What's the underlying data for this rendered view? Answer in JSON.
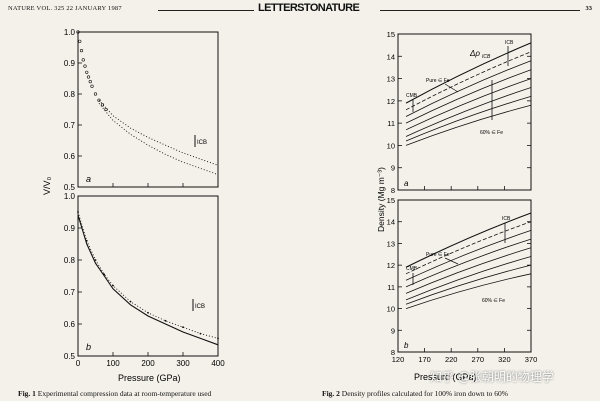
{
  "header": {
    "journal_line": "NATURE VOL. 325 22 JANUARY 1987",
    "section_title": "LETTERSTONATURE",
    "page_number": "33"
  },
  "watermark": "知乎 @张朝明的物理学",
  "fig1": {
    "caption_label": "Fig. 1",
    "caption_text": "Experimental compression data at room-temperature used",
    "ylabel": "V/V₀",
    "xlabel": "Pressure (GPa)",
    "panel_a": {
      "tag": "a",
      "annotation": "ICB",
      "y_ticks": [
        "1.0",
        "0.9",
        "0.8",
        "0.7",
        "0.6",
        "0.5"
      ]
    },
    "panel_b": {
      "tag": "b",
      "annotation": "ICB",
      "y_ticks": [
        "1.0",
        "0.9",
        "0.8",
        "0.7",
        "0.6",
        "0.5"
      ],
      "x_ticks": [
        "0",
        "100",
        "200",
        "300",
        "400"
      ]
    }
  },
  "fig2": {
    "caption_label": "Fig. 2",
    "caption_text": "Density profiles calculated for 100% iron down to 60%",
    "ylabel": "Density (Mg m⁻³)",
    "xlabel": "Pressure (GPa)",
    "panel_a": {
      "tag": "a",
      "y_ticks": [
        "15",
        "14",
        "13",
        "12",
        "11",
        "10",
        "9",
        "8"
      ],
      "labels": {
        "icb": "ICB",
        "delta": "Δρ",
        "delta_sub": "ICB",
        "pure": "Pure ∈ Fe",
        "cmb": "CMB",
        "sixty": "60% ∈ Fe"
      }
    },
    "panel_b": {
      "tag": "b",
      "y_ticks": [
        "15",
        "14",
        "13",
        "12",
        "11",
        "10",
        "9",
        "8"
      ],
      "x_ticks": [
        "120",
        "170",
        "220",
        "270",
        "320",
        "370"
      ],
      "labels": {
        "icb": "ICB",
        "pure": "Pure ∈ Fe",
        "cmb": "CMB",
        "sixty": "60% ∈ Fe"
      }
    }
  },
  "chart_data": [
    {
      "type": "scatter",
      "title": "",
      "xlabel": "Pressure (GPa)",
      "ylabel": "V/V₀",
      "xlim": [
        0,
        400
      ],
      "ylim": [
        0.5,
        1.0
      ],
      "panel": "a",
      "series": [
        {
          "x": [
            0,
            5,
            10,
            15,
            20,
            25,
            30,
            35,
            40,
            50,
            60,
            70,
            80
          ],
          "values": [
            1.0,
            0.97,
            0.94,
            0.91,
            0.89,
            0.87,
            0.855,
            0.84,
            0.825,
            0.8,
            0.78,
            0.765,
            0.75
          ]
        }
      ],
      "curves": [
        {
          "x": [
            60,
            100,
            150,
            200,
            250,
            300,
            350,
            400
          ],
          "values": [
            0.78,
            0.73,
            0.69,
            0.66,
            0.635,
            0.61,
            0.59,
            0.57
          ]
        },
        {
          "x": [
            60,
            100,
            150,
            200,
            250,
            300,
            350,
            400
          ],
          "values": [
            0.77,
            0.715,
            0.67,
            0.635,
            0.605,
            0.58,
            0.56,
            0.54
          ]
        }
      ]
    },
    {
      "type": "line",
      "title": "",
      "xlabel": "Pressure (GPa)",
      "ylabel": "V/V₀",
      "xlim": [
        0,
        400
      ],
      "ylim": [
        0.5,
        1.0
      ],
      "panel": "b",
      "series": [
        {
          "x": [
            0,
            25,
            50,
            75,
            100,
            150,
            200,
            250,
            300,
            350,
            400
          ],
          "values": [
            0.94,
            0.85,
            0.79,
            0.75,
            0.71,
            0.66,
            0.625,
            0.6,
            0.575,
            0.555,
            0.535
          ]
        },
        {
          "x": [
            0,
            25,
            50,
            75,
            100,
            150,
            200,
            250,
            300,
            350,
            400
          ],
          "values": [
            0.95,
            0.86,
            0.8,
            0.755,
            0.72,
            0.67,
            0.635,
            0.61,
            0.59,
            0.57,
            0.555
          ]
        }
      ]
    },
    {
      "type": "line",
      "title": "",
      "xlabel": "Pressure (GPa)",
      "ylabel": "Density (Mg m⁻³)",
      "xlim": [
        120,
        370
      ],
      "ylim": [
        8,
        15
      ],
      "panel": "a",
      "series": [
        {
          "x": [
            135,
            370
          ],
          "values": [
            11.9,
            14.6
          ]
        },
        {
          "x": [
            135,
            370
          ],
          "values": [
            11.6,
            14.2
          ]
        },
        {
          "x": [
            135,
            370
          ],
          "values": [
            11.3,
            13.8
          ]
        },
        {
          "x": [
            135,
            370
          ],
          "values": [
            11.0,
            13.4
          ]
        },
        {
          "x": [
            135,
            370
          ],
          "values": [
            10.7,
            13.0
          ]
        },
        {
          "x": [
            135,
            370
          ],
          "values": [
            10.4,
            12.6
          ]
        },
        {
          "x": [
            135,
            370
          ],
          "values": [
            10.2,
            12.2
          ]
        },
        {
          "x": [
            135,
            370
          ],
          "values": [
            10.0,
            11.8
          ]
        }
      ]
    },
    {
      "type": "line",
      "title": "",
      "xlabel": "Pressure (GPa)",
      "ylabel": "Density (Mg m⁻³)",
      "xlim": [
        120,
        370
      ],
      "ylim": [
        8,
        15
      ],
      "panel": "b",
      "series": [
        {
          "x": [
            135,
            370
          ],
          "values": [
            11.9,
            14.4
          ]
        },
        {
          "x": [
            135,
            370
          ],
          "values": [
            11.6,
            14.0
          ]
        },
        {
          "x": [
            135,
            370
          ],
          "values": [
            11.3,
            13.6
          ]
        },
        {
          "x": [
            135,
            370
          ],
          "values": [
            11.0,
            13.2
          ]
        },
        {
          "x": [
            135,
            370
          ],
          "values": [
            10.7,
            12.8
          ]
        },
        {
          "x": [
            135,
            370
          ],
          "values": [
            10.4,
            12.4
          ]
        },
        {
          "x": [
            135,
            370
          ],
          "values": [
            10.2,
            12.0
          ]
        },
        {
          "x": [
            135,
            370
          ],
          "values": [
            10.0,
            11.6
          ]
        }
      ]
    }
  ]
}
